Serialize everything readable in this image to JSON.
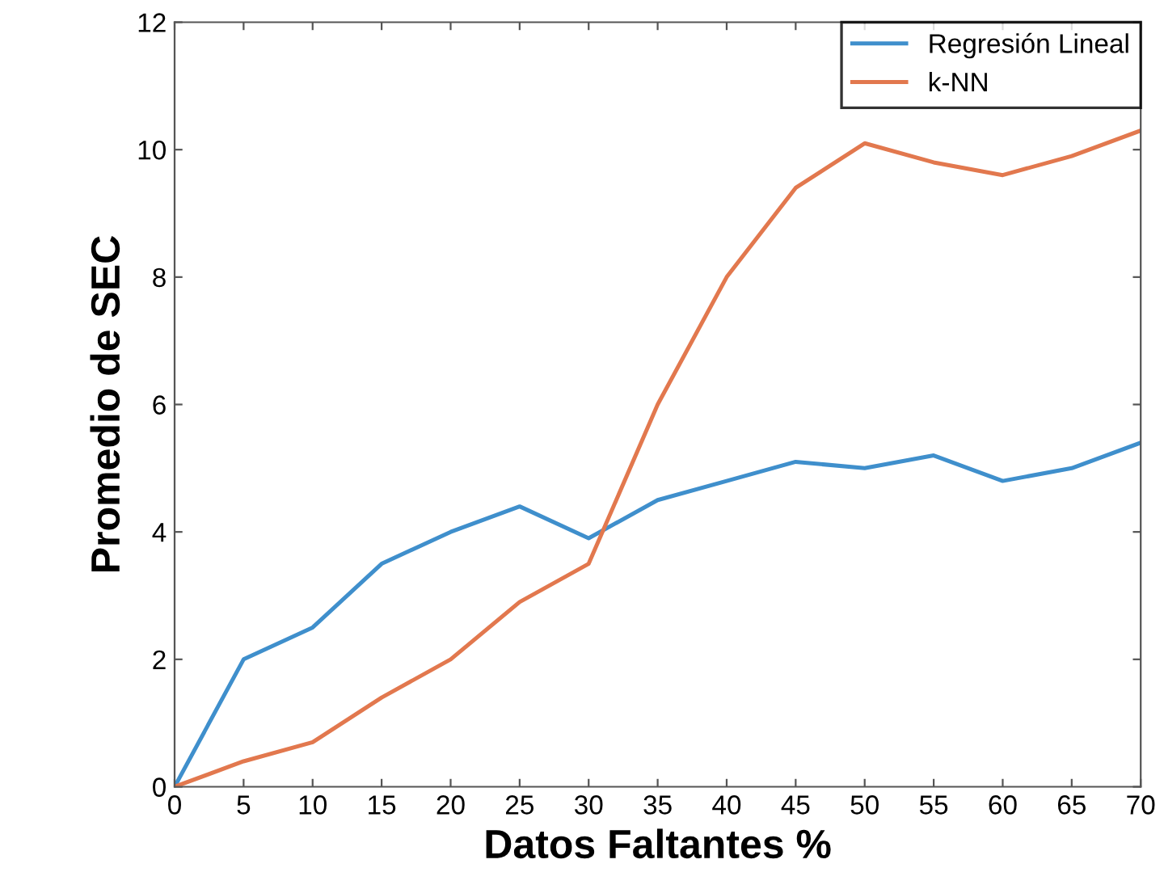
{
  "chart_data": {
    "type": "line",
    "xlabel": "Datos Faltantes %",
    "ylabel": "Promedio de SEC",
    "x": [
      0,
      5,
      10,
      15,
      20,
      25,
      30,
      35,
      40,
      45,
      50,
      55,
      60,
      65,
      70
    ],
    "series": [
      {
        "name": "Regresión Lineal",
        "color": "#3f8fcc",
        "values": [
          0,
          2,
          2.5,
          3.5,
          4,
          4.4,
          3.9,
          4.5,
          4.8,
          5.1,
          5.0,
          5.2,
          4.8,
          5.0,
          5.4
        ]
      },
      {
        "name": "k-NN",
        "color": "#e2784e",
        "values": [
          0,
          0.4,
          0.7,
          1.4,
          2.0,
          2.9,
          3.5,
          6.0,
          8.0,
          9.4,
          10.1,
          9.8,
          9.6,
          9.9,
          10.3
        ]
      }
    ],
    "xlim": [
      0,
      70
    ],
    "xticks": [
      0,
      5,
      10,
      15,
      20,
      25,
      30,
      35,
      40,
      45,
      50,
      55,
      60,
      65,
      70
    ],
    "ylim": [
      0,
      12
    ],
    "yticks": [
      0,
      2,
      4,
      6,
      8,
      10,
      12
    ],
    "grid": false,
    "legend": "top right",
    "marker": "none",
    "line_style": "solid"
  }
}
